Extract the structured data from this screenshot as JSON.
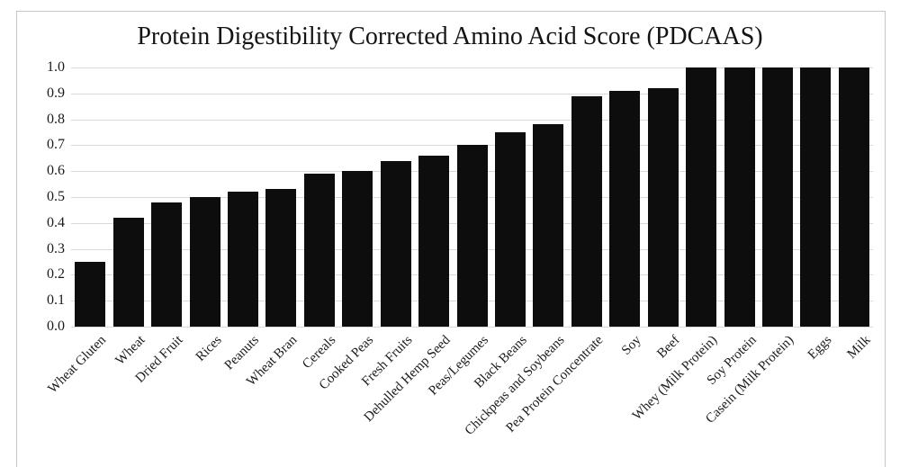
{
  "chart_data": {
    "type": "bar",
    "title": "Protein Digestibility Corrected Amino Acid Score (PDCAAS)",
    "xlabel": "",
    "ylabel": "",
    "categories": [
      "Wheat Gluten",
      "Wheat",
      "Dried Fruit",
      "Rices",
      "Peanuts",
      "Wheat Bran",
      "Cereals",
      "Cooked Peas",
      "Fresh Fruits",
      "Dehulled Hemp Seed",
      "Peas/Legumes",
      "Black Beans",
      "Chickpeas and Soybeans",
      "Pea Protein Concentrate",
      "Soy",
      "Beef",
      "Whey (Milk Protein)",
      "Soy Protein",
      "Casein (Milk Protein)",
      "Eggs",
      "Milk"
    ],
    "values": [
      0.25,
      0.42,
      0.48,
      0.5,
      0.52,
      0.53,
      0.59,
      0.6,
      0.64,
      0.66,
      0.7,
      0.75,
      0.78,
      0.89,
      0.91,
      0.92,
      1.0,
      1.0,
      1.0,
      1.0,
      1.0
    ],
    "ylim": [
      0.0,
      1.0
    ],
    "ytick_labels": [
      "0.0",
      "0.1",
      "0.2",
      "0.3",
      "0.4",
      "0.5",
      "0.6",
      "0.7",
      "0.8",
      "0.9",
      "1.0"
    ],
    "grid": "horizontal",
    "legend_position": "none",
    "xtick_rotation_deg": 45,
    "colors": {
      "bar": "#0d0d0d",
      "gridline": "#dadada",
      "frame": "#c6c6c6",
      "background": "#ffffff",
      "text": "#1a1a1a"
    }
  }
}
